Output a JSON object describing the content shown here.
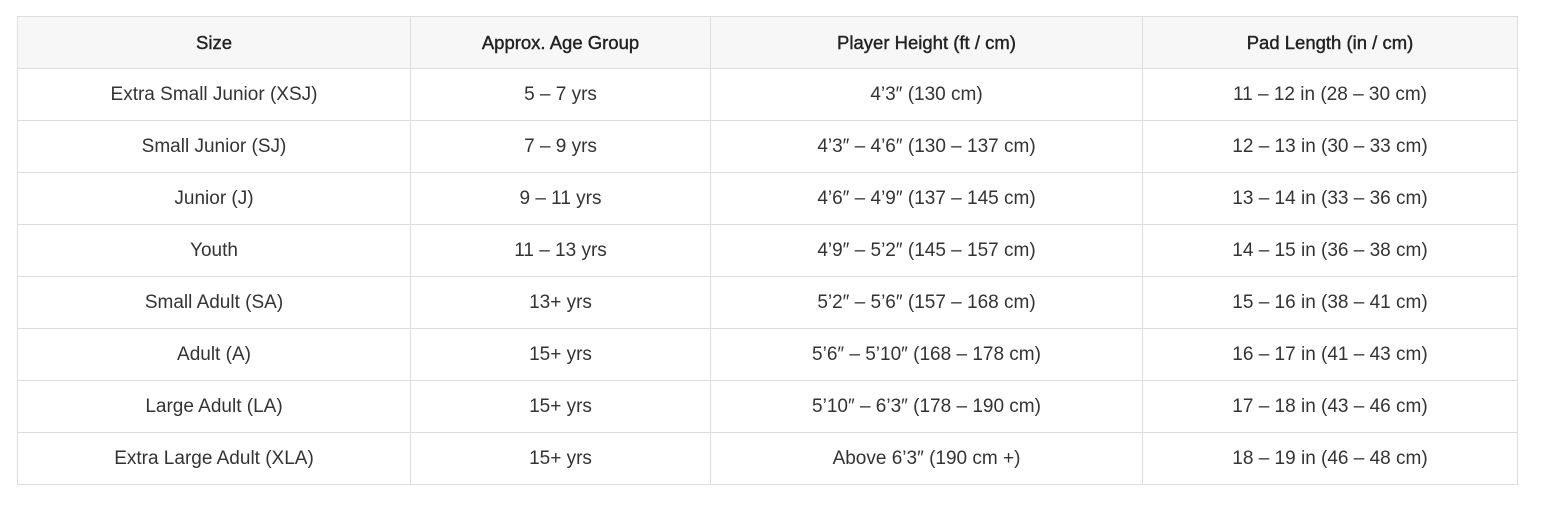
{
  "table": {
    "header": [
      "Size",
      "Approx. Age Group",
      "Player Height (ft / cm)",
      "Pad Length (in / cm)"
    ],
    "rows": [
      [
        "Extra Small Junior (XSJ)",
        "5 – 7 yrs",
        "4’3″ (130 cm)",
        "11 – 12 in (28 – 30 cm)"
      ],
      [
        "Small Junior (SJ)",
        "7 – 9 yrs",
        "4’3″ – 4’6″ (130 – 137 cm)",
        "12 – 13 in (30 – 33 cm)"
      ],
      [
        "Junior (J)",
        "9 – 11 yrs",
        "4’6″ – 4’9″ (137 – 145 cm)",
        "13 – 14 in (33 – 36 cm)"
      ],
      [
        "Youth",
        "11 – 13 yrs",
        "4’9″ – 5’2″ (145 – 157 cm)",
        "14 – 15 in (36 – 38 cm)"
      ],
      [
        "Small Adult (SA)",
        "13+ yrs",
        "5’2″ – 5’6″ (157 – 168 cm)",
        "15 – 16 in (38 – 41 cm)"
      ],
      [
        "Adult (A)",
        "15+ yrs",
        "5’6″ – 5’10″ (168 – 178 cm)",
        "16 – 17 in (41 – 43 cm)"
      ],
      [
        "Large Adult (LA)",
        "15+ yrs",
        "5’10″ – 6’3″ (178 – 190 cm)",
        "17 – 18 in (43 – 46 cm)"
      ],
      [
        "Extra Large Adult (XLA)",
        "15+ yrs",
        "Above 6’3″ (190 cm +)",
        "18 – 19 in (46 – 48 cm)"
      ]
    ]
  }
}
